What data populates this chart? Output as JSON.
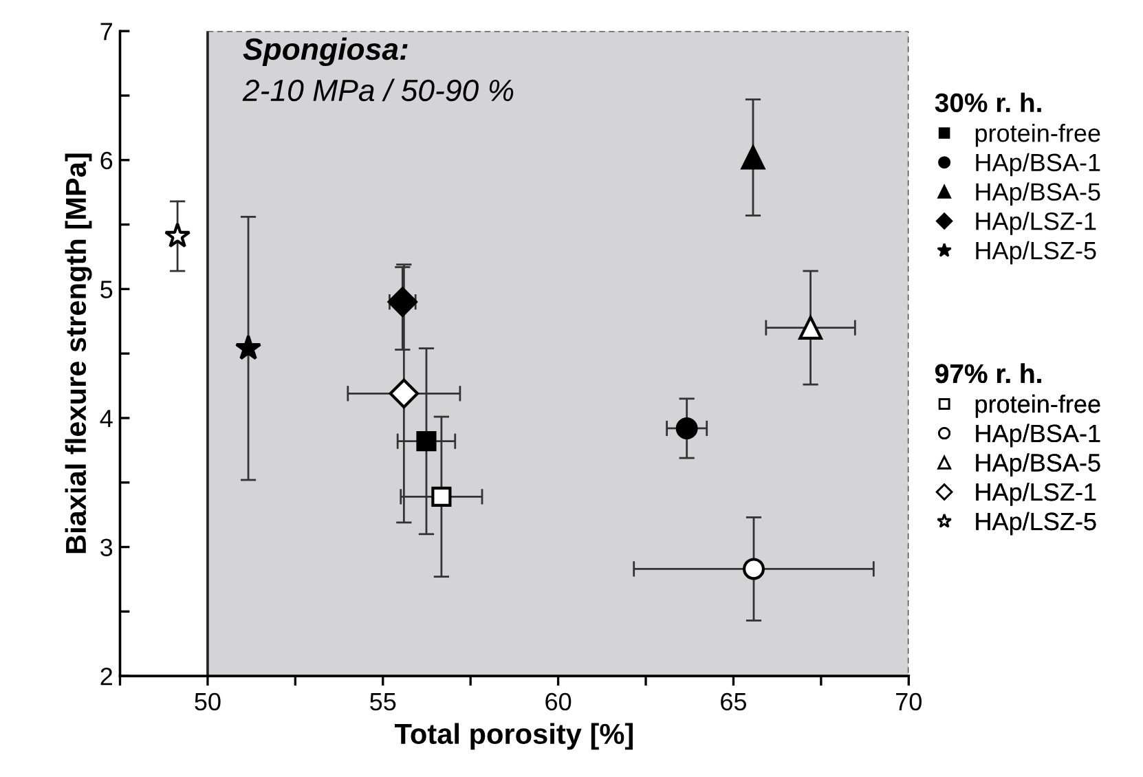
{
  "chart_data": {
    "type": "scatter",
    "xlabel": "Total porosity [%]",
    "ylabel": "Biaxial flexure strength [MPa]",
    "xlim": [
      47.5,
      70
    ],
    "xticks": [
      {
        "value": 47.5,
        "label": null
      },
      50,
      {
        "value": 52.5,
        "label": null
      },
      55,
      {
        "value": 57.5,
        "label": null
      },
      60,
      {
        "value": 62.5,
        "label": null
      },
      65,
      {
        "value": 67.5,
        "label": null
      },
      70
    ],
    "ylim": [
      2,
      7
    ],
    "yticks": [
      2,
      {
        "value": 2.5,
        "label": null
      },
      3,
      {
        "value": 3.5,
        "label": null
      },
      4,
      {
        "value": 4.5,
        "label": null
      },
      5,
      {
        "value": 5.5,
        "label": null
      },
      6,
      {
        "value": 6.5,
        "label": null
      },
      7
    ],
    "bands": [
      {
        "axis": "x",
        "from": 50,
        "to": 70,
        "label": "Spongiosa:\n2-10 MPa / 50-90 %",
        "color": "#d4d4d6"
      }
    ],
    "legend": "right",
    "legend_title": [
      "30% r. h.",
      "97% r. h."
    ],
    "series": [
      {
        "name": "protein-free",
        "marker": "square",
        "color": "#000000",
        "x": [
          56.24
        ],
        "values": [
          3.82
        ],
        "errors": [
          0.72
        ],
        "xerrors": [
          0.82
        ]
      },
      {
        "name": "HAp/BSA-1",
        "marker": "circle",
        "color": "#000000",
        "x": [
          63.67
        ],
        "values": [
          3.92
        ],
        "errors": [
          0.23
        ],
        "xerrors": [
          0.57
        ]
      },
      {
        "name": "HAp/BSA-5",
        "marker": "triangle",
        "color": "#000000",
        "x": [
          65.56
        ],
        "values": [
          6.02
        ],
        "errors": [
          0.45
        ],
        "xerrors": [
          null
        ]
      },
      {
        "name": "HAp/LSZ-1",
        "marker": "diamond",
        "color": "#000000",
        "x": [
          55.56
        ],
        "values": [
          4.9
        ],
        "errors": [
          [
            4.53,
            5.17
          ]
        ],
        "xerrors": [
          0.37
        ]
      },
      {
        "name": "HAp/LSZ-5",
        "marker": "star",
        "color": "#000000",
        "x": [
          51.16
        ],
        "values": [
          4.54
        ],
        "errors": [
          1.02
        ],
        "xerrors": [
          null
        ]
      },
      {
        "name": "protein-free",
        "marker": "square",
        "color": "#ffffff",
        "x": [
          56.67
        ],
        "values": [
          3.39
        ],
        "errors": [
          0.62
        ],
        "xerrors": [
          1.16
        ]
      },
      {
        "name": "HAp/BSA-1",
        "marker": "circle",
        "color": "#ffffff",
        "x": [
          65.58
        ],
        "values": [
          2.83
        ],
        "errors": [
          0.4
        ],
        "xerrors": [
          3.42
        ]
      },
      {
        "name": "HAp/BSA-5",
        "marker": "triangle",
        "color": "#ffffff",
        "x": [
          67.2
        ],
        "values": [
          4.7
        ],
        "errors": [
          0.44
        ],
        "xerrors": [
          1.27
        ]
      },
      {
        "name": "HAp/LSZ-1",
        "marker": "diamond",
        "color": "#ffffff",
        "x": [
          55.6
        ],
        "values": [
          4.19
        ],
        "errors": [
          1.0
        ],
        "xerrors": [
          1.6
        ]
      },
      {
        "name": "HAp/LSZ-5",
        "marker": "star",
        "color": "#ffffff",
        "x": [
          49.14
        ],
        "values": [
          5.41
        ],
        "errors": [
          0.27
        ],
        "xerrors": [
          null
        ]
      }
    ]
  }
}
